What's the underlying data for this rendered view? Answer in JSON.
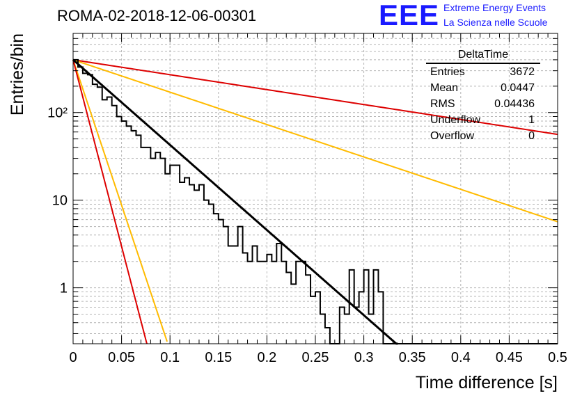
{
  "header": {
    "title": "ROMA-02-2018-12-06-00301",
    "logo_mark": "EEE",
    "logo_line1": "Extreme Energy Events",
    "logo_line2": "La Scienza nelle Scuole"
  },
  "stats_box": {
    "title": "DeltaTime",
    "rows": [
      {
        "label": "Entries",
        "value": "3672"
      },
      {
        "label": "Mean",
        "value": "0.0447"
      },
      {
        "label": "RMS",
        "value": "0.04436"
      },
      {
        "label": "Underflow",
        "value": "1"
      },
      {
        "label": "Overflow",
        "value": "0"
      }
    ]
  },
  "colors": {
    "histogram": "#000000",
    "fit": "#000000",
    "red_curve": "#dd0000",
    "orange_curve": "#ffbb00",
    "grid": "#b4b4b4",
    "logo": "#1a1aff"
  },
  "chart_data": {
    "type": "histogram",
    "title": "ROMA-02-2018-12-06-00301",
    "xlabel": "Time difference [s]",
    "ylabel": "Entries/bin",
    "x_range": [
      0,
      0.5
    ],
    "y_range": [
      0.23,
      800
    ],
    "y_scale": "log",
    "grid": true,
    "bin_width": 0.005,
    "x_ticks": [
      0,
      0.05,
      0.1,
      0.15,
      0.2,
      0.25,
      0.3,
      0.35,
      0.4,
      0.45,
      0.5
    ],
    "x_tick_labels": [
      "0",
      "0.05",
      "0.1",
      "0.15",
      "0.2",
      "0.25",
      "0.3",
      "0.35",
      "0.4",
      "0.45",
      "0.5"
    ],
    "y_ticks": [
      1,
      10,
      100
    ],
    "y_tick_labels": [
      "1",
      "10",
      "10²"
    ],
    "histogram_counts": [
      400,
      330,
      280,
      270,
      210,
      195,
      140,
      150,
      120,
      90,
      80,
      70,
      62,
      55,
      40,
      40,
      30,
      35,
      30,
      20,
      25,
      25,
      16,
      18,
      15,
      13,
      15,
      10,
      9,
      7,
      6,
      5,
      3,
      3,
      5,
      2.5,
      2,
      3,
      2,
      2,
      2.4,
      2,
      3.2,
      2,
      1.5,
      1.1,
      2,
      2,
      1.4,
      0.8,
      0.9,
      0.5,
      0.35,
      0.2,
      0.2,
      0.6,
      0.5,
      1.6,
      0.6,
      0.9,
      1.6,
      0.5,
      1.6,
      0.9,
      0.2,
      0.2,
      0,
      0,
      0,
      0,
      0,
      0,
      0,
      0,
      0,
      0,
      0,
      0,
      0,
      0,
      0,
      0,
      0,
      0,
      0,
      0,
      0,
      0,
      0,
      0,
      0,
      0,
      0,
      0,
      0,
      0,
      0,
      0,
      0,
      0
    ],
    "fit_curve": {
      "A": 400,
      "tau": 0.0447,
      "x_range": [
        0,
        0.335
      ]
    },
    "curves": [
      {
        "color": "red",
        "A": 400,
        "tau": 0.255,
        "x_range": [
          0,
          0.5
        ]
      },
      {
        "color": "orange",
        "A": 400,
        "tau": 0.1175,
        "x_range": [
          0,
          0.5
        ]
      },
      {
        "color": "orange",
        "A": 400,
        "tau": 0.0131,
        "x_range": [
          0,
          0.097
        ]
      },
      {
        "color": "red",
        "A": 400,
        "tau": 0.0102,
        "x_range": [
          0,
          0.079
        ]
      }
    ]
  }
}
